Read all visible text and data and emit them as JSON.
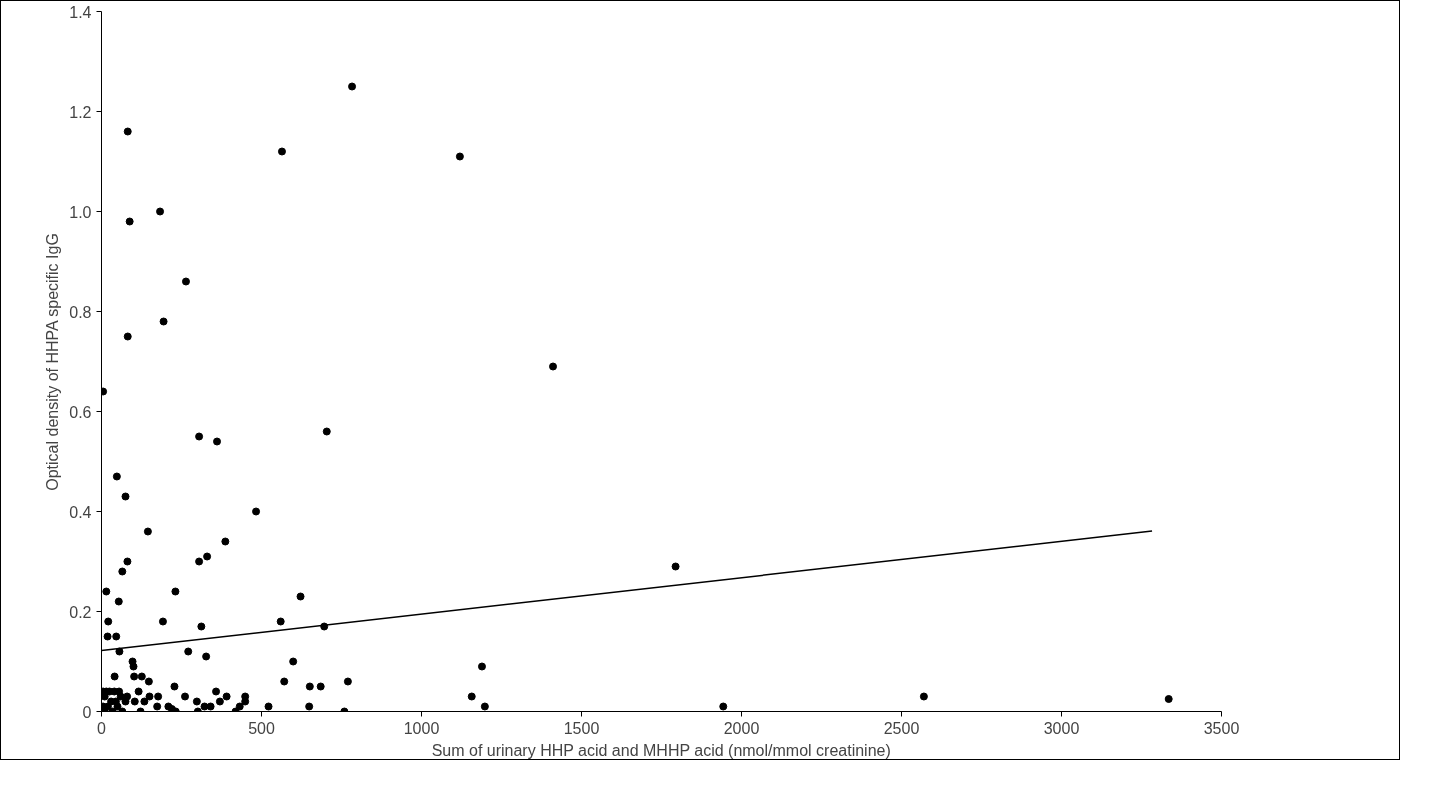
{
  "chart_data": {
    "type": "scatter",
    "xlabel": "Sum of urinary HHP acid and MHHP acid (nmol/mmol creatinine)",
    "ylabel": "Optical density of HHPA specific IgG",
    "xlim": [
      0,
      3500
    ],
    "ylim": [
      0,
      1.4
    ],
    "xticks": [
      0,
      500,
      1000,
      1500,
      2000,
      2500,
      3000,
      3500
    ],
    "yticks": [
      0,
      0.2,
      0.4,
      0.6,
      0.8,
      {
        "value": 1.0,
        "label": "1.0"
      },
      1.2,
      1.4
    ],
    "grid": false,
    "marker": "circle",
    "series": [
      {
        "color": "#000000",
        "x": [
          783,
          82,
          564,
          1120,
          183,
          88,
          264,
          194,
          82,
          5,
          305,
          361,
          704,
          48,
          75,
          483,
          145,
          387,
          305,
          330,
          81,
          65,
          15,
          54,
          231,
          21,
          192,
          312,
          560,
          622,
          696,
          19,
          46,
          56,
          271,
          327,
          97,
          100,
          599,
          1189,
          41,
          102,
          126,
          148,
          571,
          770,
          228,
          651,
          685,
          116,
          358,
          1157,
          1411,
          1794,
          1198,
          1943,
          2570,
          3335,
          5,
          15,
          25,
          40,
          55,
          10,
          30,
          45,
          60,
          5,
          20,
          35,
          50,
          65,
          75,
          10,
          80,
          104,
          134,
          150,
          177,
          261,
          298,
          370,
          391,
          449,
          449,
          432,
          174,
          209,
          220,
          322,
          341,
          232,
          301,
          419,
          522,
          649,
          759,
          122
        ],
        "values": [
          1.25,
          1.16,
          1.12,
          1.11,
          1.0,
          0.98,
          0.86,
          0.78,
          0.75,
          0.64,
          0.55,
          0.54,
          0.56,
          0.47,
          0.43,
          0.4,
          0.36,
          0.34,
          0.3,
          0.31,
          0.3,
          0.28,
          0.24,
          0.22,
          0.24,
          0.18,
          0.18,
          0.17,
          0.18,
          0.23,
          0.17,
          0.15,
          0.15,
          0.12,
          0.12,
          0.11,
          0.1,
          0.09,
          0.1,
          0.09,
          0.07,
          0.07,
          0.07,
          0.06,
          0.06,
          0.06,
          0.05,
          0.05,
          0.05,
          0.04,
          0.04,
          0.03,
          0.69,
          0.29,
          0.01,
          0.01,
          0.03,
          0.025,
          0.04,
          0.04,
          0.04,
          0.04,
          0.04,
          0.03,
          0.02,
          0.02,
          0.03,
          0.01,
          0.01,
          0.0,
          0.01,
          0.0,
          0.02,
          0.0,
          0.03,
          0.02,
          0.02,
          0.03,
          0.03,
          0.03,
          0.02,
          0.02,
          0.03,
          0.03,
          0.02,
          0.01,
          0.01,
          0.01,
          0.005,
          0.01,
          0.01,
          0.0,
          0.0,
          0.0,
          0.01,
          0.01,
          0.0,
          0.0
        ]
      },
      {
        "type": "line",
        "marker": "none",
        "color": "#000000",
        "x": [
          0,
          3283
        ],
        "values": [
          0.122,
          0.361
        ]
      }
    ]
  }
}
